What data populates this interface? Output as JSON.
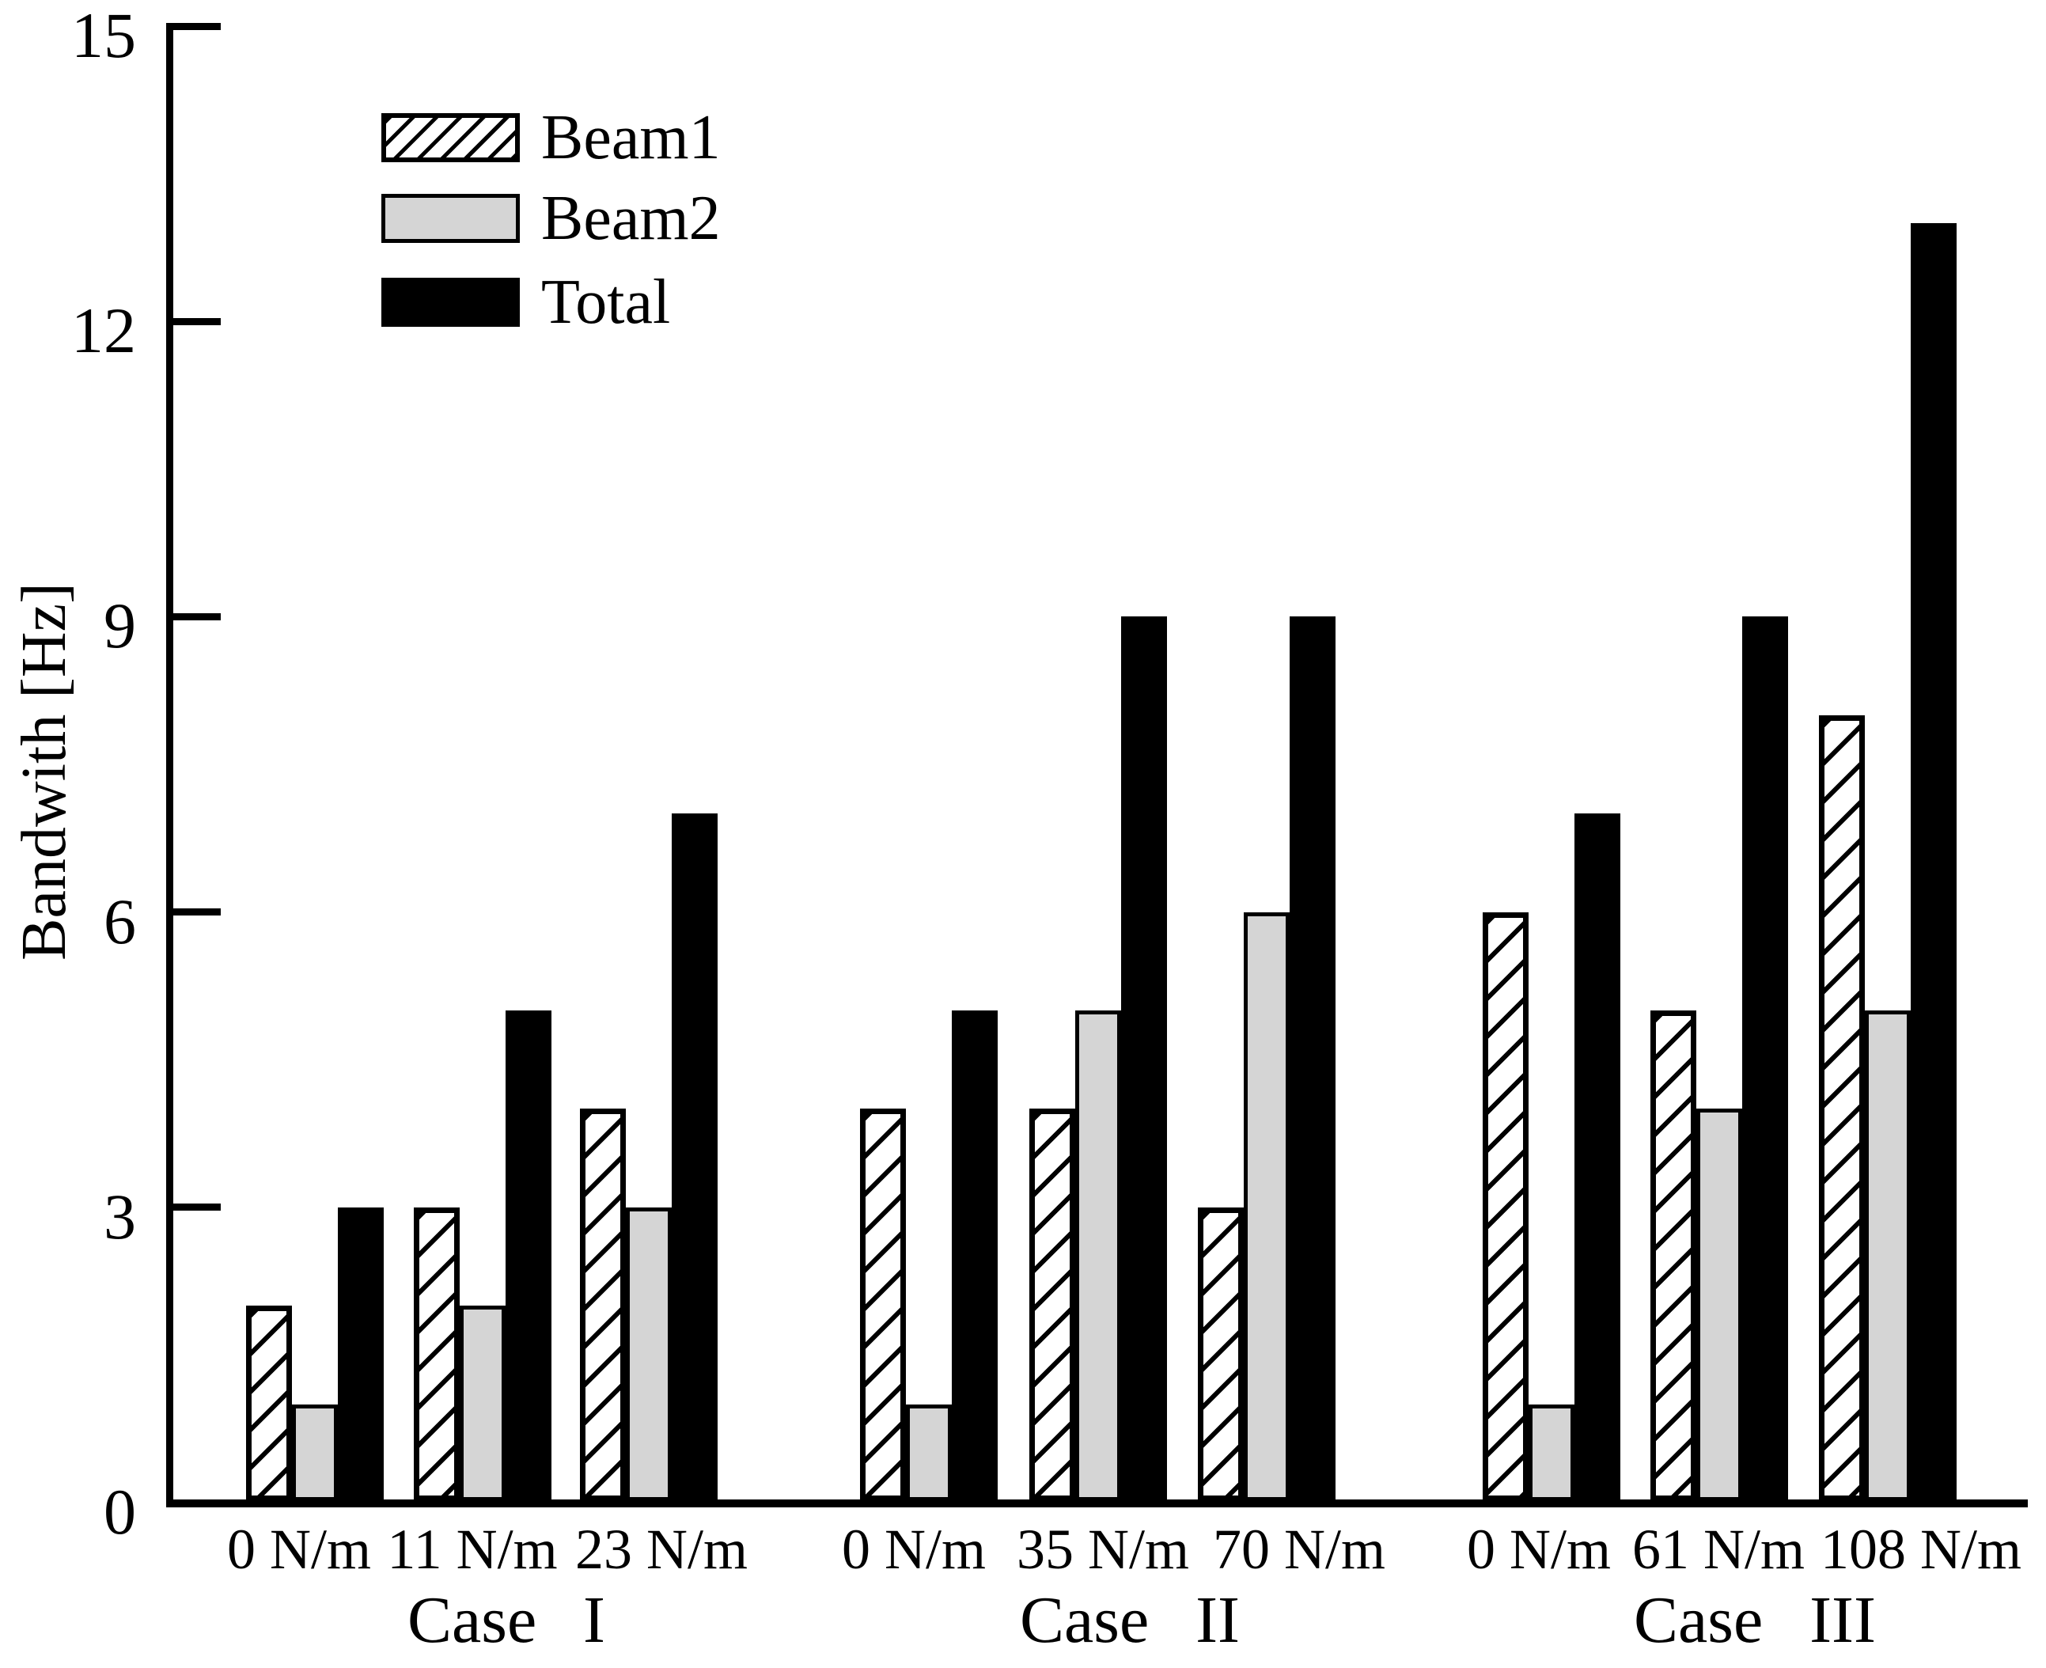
{
  "figure": {
    "background": "#ffffff",
    "ylabel": "Bandwith [Hz]"
  },
  "colors": {
    "axis": "#000000",
    "beam1_hatch": "#000000",
    "beam2_fill": "#d5d5d5",
    "total_fill": "#000000",
    "background": "#ffffff"
  },
  "legend": {
    "items": [
      {
        "label": "Beam1",
        "style": "hatched"
      },
      {
        "label": "Beam2",
        "style": "gray"
      },
      {
        "label": "Total",
        "style": "black"
      }
    ]
  },
  "chart_data": {
    "type": "bar",
    "title": "",
    "xlabel": "",
    "ylabel": "Bandwith [Hz]",
    "ylim": [
      0,
      15
    ],
    "yticks": [
      0,
      3,
      6,
      9,
      12,
      15
    ],
    "grid": false,
    "legend_position": "upper-left-inside",
    "series_names": [
      "Beam1",
      "Beam2",
      "Total"
    ],
    "cases": [
      {
        "case_label": "Case I",
        "conditions": [
          {
            "label": "0 N/m",
            "values": {
              "Beam1": 2,
              "Beam2": 1,
              "Total": 3
            }
          },
          {
            "label": "11 N/m",
            "values": {
              "Beam1": 3,
              "Beam2": 2,
              "Total": 5
            }
          },
          {
            "label": "23 N/m",
            "values": {
              "Beam1": 4,
              "Beam2": 3,
              "Total": 7
            }
          }
        ]
      },
      {
        "case_label": "Case II",
        "conditions": [
          {
            "label": "0 N/m",
            "values": {
              "Beam1": 4,
              "Beam2": 1,
              "Total": 5
            }
          },
          {
            "label": "35 N/m",
            "values": {
              "Beam1": 4,
              "Beam2": 5,
              "Total": 9
            }
          },
          {
            "label": "70 N/m",
            "values": {
              "Beam1": 3,
              "Beam2": 6,
              "Total": 9
            }
          }
        ]
      },
      {
        "case_label": "Case III",
        "conditions": [
          {
            "label": "0 N/m",
            "values": {
              "Beam1": 6,
              "Beam2": 1,
              "Total": 7
            }
          },
          {
            "label": "61 N/m",
            "values": {
              "Beam1": 5,
              "Beam2": 4,
              "Total": 9
            }
          },
          {
            "label": "108 N/m",
            "values": {
              "Beam1": 8,
              "Beam2": 5,
              "Total": 13
            }
          }
        ]
      }
    ]
  }
}
